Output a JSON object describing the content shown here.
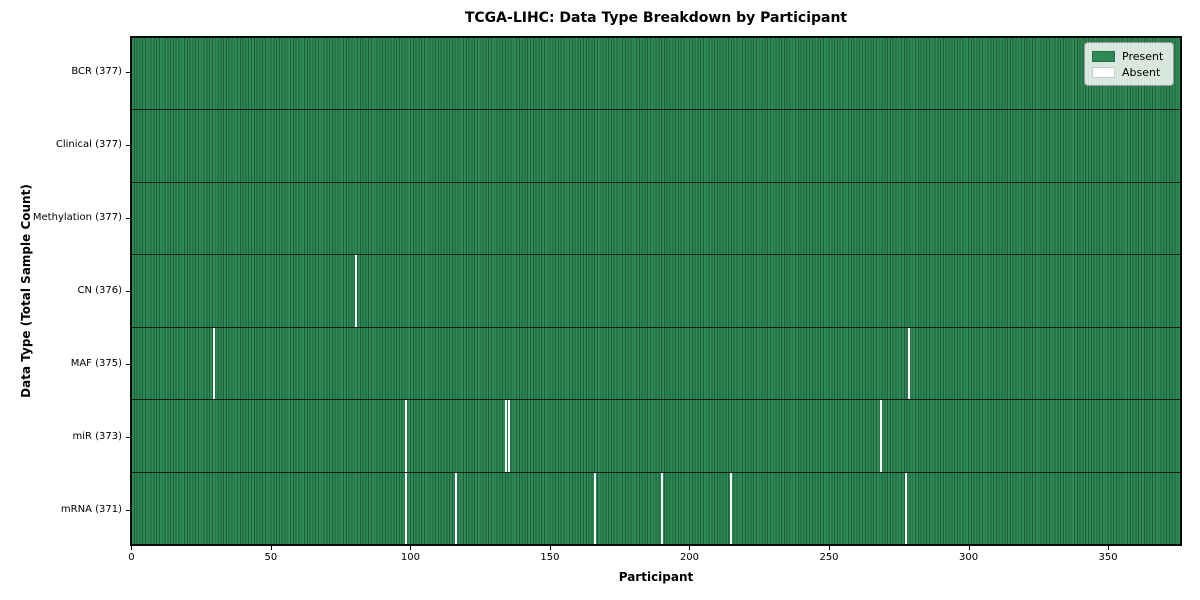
{
  "title": "TCGA-LIHC: Data Type Breakdown by Participant",
  "xlabel": "Participant",
  "ylabel": "Data Type (Total Sample Count)",
  "legend": {
    "present_label": "Present",
    "absent_label": "Absent",
    "position": "upper right"
  },
  "colors": {
    "present": "#2e8b57",
    "present_stripe_dark": "#1e5c38",
    "absent": "#ffffff",
    "row_divider": "#000000",
    "background": "#ffffff"
  },
  "chart_data": {
    "type": "heatmap",
    "title": "TCGA-LIHC: Data Type Breakdown by Participant",
    "xlabel": "Participant",
    "ylabel": "Data Type (Total Sample Count)",
    "n_participants": 377,
    "x_ticks": [
      0,
      50,
      100,
      150,
      200,
      250,
      300,
      350
    ],
    "x_range": [
      0,
      377
    ],
    "grid": false,
    "legend_position": "upper right",
    "value_legend": {
      "1": "Present",
      "0": "Absent"
    },
    "rows": [
      {
        "data_type": "BCR",
        "label": "BCR (377)",
        "present_count": 377,
        "absent_participants": []
      },
      {
        "data_type": "Clinical",
        "label": "Clinical (377)",
        "present_count": 377,
        "absent_participants": []
      },
      {
        "data_type": "Methylation",
        "label": "Methylation (377)",
        "present_count": 377,
        "absent_participants": []
      },
      {
        "data_type": "CN",
        "label": "CN (376)",
        "present_count": 376,
        "absent_participants": [
          80
        ]
      },
      {
        "data_type": "MAF",
        "label": "MAF (375)",
        "present_count": 375,
        "absent_participants": [
          29,
          279
        ]
      },
      {
        "data_type": "miR",
        "label": "miR (373)",
        "present_count": 373,
        "absent_participants": [
          98,
          134,
          135,
          269
        ]
      },
      {
        "data_type": "mRNA",
        "label": "mRNA (371)",
        "present_count": 371,
        "absent_participants": [
          98,
          116,
          166,
          190,
          215,
          278
        ]
      }
    ]
  }
}
